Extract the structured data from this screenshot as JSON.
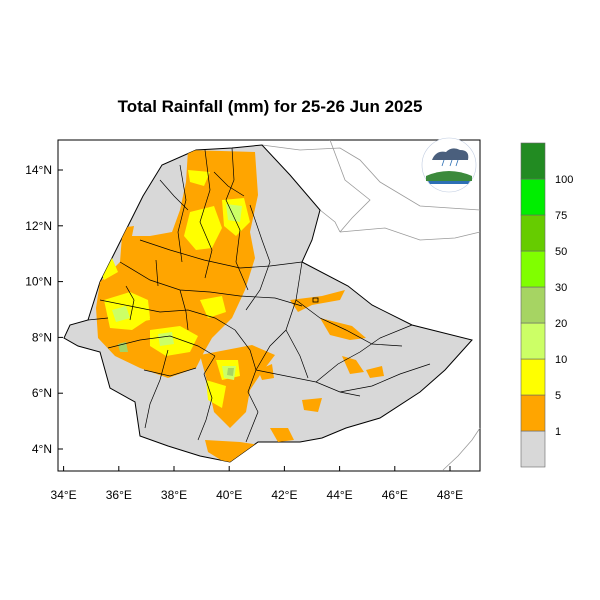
{
  "title": "Total Rainfall (mm) for 25-26 Jun 2025",
  "map": {
    "lon_range": [
      33,
      48.2
    ],
    "lat_range": [
      3.2,
      15
    ],
    "x_ticks": [
      "34°E",
      "36°E",
      "38°E",
      "40°E",
      "42°E",
      "44°E",
      "46°E",
      "48°E"
    ],
    "y_ticks": [
      "14°N",
      "12°N",
      "10°N",
      "8°N",
      "6°N",
      "4°N"
    ],
    "background_color": "#d8d8d8",
    "border_color": "#000000"
  },
  "legend": {
    "thresholds": [
      "1",
      "5",
      "10",
      "20",
      "30",
      "50",
      "75",
      "100"
    ],
    "colors": [
      "#d8d8d8",
      "#ffa500",
      "#ffff00",
      "#ccff66",
      "#a6d463",
      "#80ff00",
      "#66cc00",
      "#00ee00",
      "#228b22"
    ],
    "units": "mm"
  },
  "logo": {
    "name": "ethiopia-meteorology-logo"
  }
}
